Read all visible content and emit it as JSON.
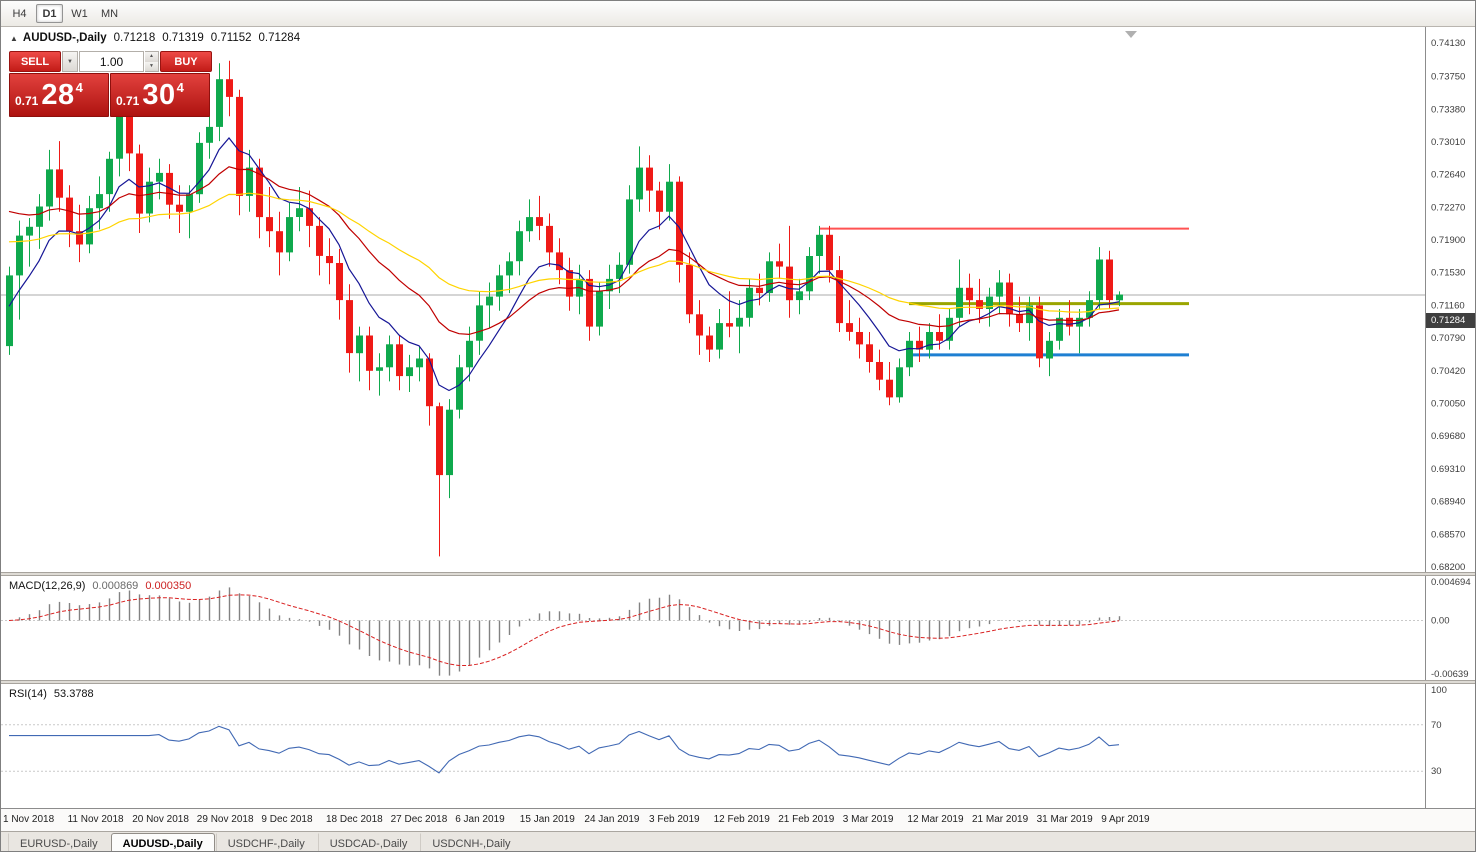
{
  "toolbar": {
    "timeframes": [
      {
        "label": "H4",
        "active": false
      },
      {
        "label": "D1",
        "active": true
      },
      {
        "label": "W1",
        "active": false
      },
      {
        "label": "MN",
        "active": false
      }
    ]
  },
  "chart": {
    "symbol_title": "AUDUSD-,Daily",
    "ohlc": {
      "open": "0.71218",
      "high": "0.71319",
      "low": "0.71152",
      "close": "0.71284"
    },
    "current_price": "0.71284",
    "price_scale": [
      "0.74130",
      "0.73750",
      "0.73380",
      "0.73010",
      "0.72640",
      "0.72270",
      "0.71900",
      "0.71530",
      "0.71160",
      "0.70790",
      "0.70420",
      "0.70050",
      "0.69680",
      "0.69310",
      "0.68940",
      "0.68570",
      "0.68200"
    ],
    "trade_panel": {
      "sell_label": "SELL",
      "buy_label": "BUY",
      "volume": "1.00",
      "bid": {
        "big_figure": "0.71",
        "pips": "28",
        "pipette": "4"
      },
      "ask": {
        "big_figure": "0.71",
        "pips": "30",
        "pipette": "4"
      }
    }
  },
  "macd": {
    "label": "MACD(12,26,9)",
    "main_value": "0.000869",
    "signal_value": "0.000350",
    "scale": {
      "top": "0.004694",
      "zero": "0.00",
      "bottom": "-0.00639"
    }
  },
  "rsi": {
    "label": "RSI(14)",
    "value": "53.3788",
    "scale_labels": [
      "100",
      "70",
      "30"
    ]
  },
  "date_axis": [
    "1 Nov 2018",
    "11 Nov 2018",
    "20 Nov 2018",
    "29 Nov 2018",
    "9 Dec 2018",
    "18 Dec 2018",
    "27 Dec 2018",
    "6 Jan 2019",
    "15 Jan 2019",
    "24 Jan 2019",
    "3 Feb 2019",
    "12 Feb 2019",
    "21 Feb 2019",
    "3 Mar 2019",
    "12 Mar 2019",
    "21 Mar 2019",
    "31 Mar 2019",
    "9 Apr 2019"
  ],
  "tabs": [
    {
      "label": "EURUSD-,Daily",
      "active": false
    },
    {
      "label": "AUDUSD-,Daily",
      "active": true
    },
    {
      "label": "USDCHF-,Daily",
      "active": false
    },
    {
      "label": "USDCAD-,Daily",
      "active": false
    },
    {
      "label": "USDCNH-,Daily",
      "active": false
    }
  ],
  "chart_data": {
    "type": "candlestick",
    "symbol": "AUDUSD",
    "timeframe": "Daily",
    "title": "AUDUSD-,Daily",
    "y_range": [
      0.682,
      0.7413
    ],
    "macd_range": [
      -0.00639,
      0.004694
    ],
    "rsi_range": [
      0,
      100
    ],
    "rsi_levels": [
      70,
      30
    ],
    "colors": {
      "bull": "#0fa94d",
      "bear": "#ef1a17",
      "rsi": "#4169b4",
      "macd_hist": "#828282",
      "macd_signal": "#d92222",
      "current_price_line": "#ababab"
    },
    "moving_averages": [
      {
        "period": 8,
        "color": "#161696",
        "seed": 0.7105
      },
      {
        "period": 20,
        "color": "#c00000",
        "seed": 0.723
      },
      {
        "period": 40,
        "color": "#ffd400",
        "seed": 0.719
      }
    ],
    "hlines": [
      {
        "price": 0.7203,
        "color": "#ff5252",
        "width": 2,
        "from_bar": 81,
        "to_bar": 118
      },
      {
        "price": 0.7118,
        "color": "#9aa500",
        "width": 3,
        "from_bar": 90,
        "to_bar": 118
      },
      {
        "price": 0.706,
        "color": "#1e7fd2",
        "width": 3,
        "from_bar": 90,
        "to_bar": 118
      }
    ],
    "candles": [
      [
        0.707,
        0.716,
        0.706,
        0.715
      ],
      [
        0.715,
        0.7212,
        0.71,
        0.7195
      ],
      [
        0.7195,
        0.7215,
        0.716,
        0.7205
      ],
      [
        0.7205,
        0.7242,
        0.718,
        0.7228
      ],
      [
        0.7228,
        0.7292,
        0.7212,
        0.727
      ],
      [
        0.727,
        0.7302,
        0.7222,
        0.7238
      ],
      [
        0.7238,
        0.7252,
        0.7182,
        0.72
      ],
      [
        0.72,
        0.723,
        0.7165,
        0.7185
      ],
      [
        0.7185,
        0.724,
        0.7175,
        0.7226
      ],
      [
        0.7226,
        0.7262,
        0.7202,
        0.7242
      ],
      [
        0.7242,
        0.729,
        0.7222,
        0.7282
      ],
      [
        0.7282,
        0.7338,
        0.7262,
        0.733
      ],
      [
        0.733,
        0.7336,
        0.7268,
        0.7288
      ],
      [
        0.7288,
        0.7298,
        0.7198,
        0.722
      ],
      [
        0.722,
        0.7272,
        0.721,
        0.7256
      ],
      [
        0.7256,
        0.7282,
        0.7236,
        0.7266
      ],
      [
        0.7266,
        0.7276,
        0.7214,
        0.723
      ],
      [
        0.723,
        0.7252,
        0.7198,
        0.7222
      ],
      [
        0.7222,
        0.7252,
        0.7192,
        0.7242
      ],
      [
        0.7242,
        0.7312,
        0.7232,
        0.73
      ],
      [
        0.73,
        0.7332,
        0.7282,
        0.7318
      ],
      [
        0.7318,
        0.739,
        0.7302,
        0.7372
      ],
      [
        0.7372,
        0.7393,
        0.733,
        0.7352
      ],
      [
        0.7352,
        0.736,
        0.7218,
        0.724
      ],
      [
        0.724,
        0.7292,
        0.7222,
        0.7272
      ],
      [
        0.7272,
        0.7282,
        0.7192,
        0.7216
      ],
      [
        0.7216,
        0.725,
        0.7182,
        0.72
      ],
      [
        0.72,
        0.7222,
        0.715,
        0.7176
      ],
      [
        0.7176,
        0.7232,
        0.7166,
        0.7216
      ],
      [
        0.7216,
        0.725,
        0.72,
        0.7226
      ],
      [
        0.7226,
        0.7246,
        0.7182,
        0.7206
      ],
      [
        0.7206,
        0.7216,
        0.715,
        0.7172
      ],
      [
        0.7172,
        0.7192,
        0.714,
        0.7164
      ],
      [
        0.7164,
        0.718,
        0.71,
        0.7122
      ],
      [
        0.7122,
        0.714,
        0.704,
        0.7062
      ],
      [
        0.7062,
        0.7092,
        0.703,
        0.7082
      ],
      [
        0.7082,
        0.7092,
        0.702,
        0.7042
      ],
      [
        0.7042,
        0.7062,
        0.7014,
        0.7046
      ],
      [
        0.7046,
        0.7082,
        0.703,
        0.7072
      ],
      [
        0.7072,
        0.7082,
        0.702,
        0.7036
      ],
      [
        0.7036,
        0.706,
        0.7018,
        0.7046
      ],
      [
        0.7046,
        0.707,
        0.703,
        0.7056
      ],
      [
        0.7056,
        0.7062,
        0.698,
        0.7002
      ],
      [
        0.7002,
        0.7006,
        0.6832,
        0.6924
      ],
      [
        0.6924,
        0.701,
        0.6898,
        0.6998
      ],
      [
        0.6998,
        0.706,
        0.6988,
        0.7046
      ],
      [
        0.7046,
        0.7092,
        0.703,
        0.7076
      ],
      [
        0.7076,
        0.7132,
        0.706,
        0.7116
      ],
      [
        0.7116,
        0.7142,
        0.709,
        0.7126
      ],
      [
        0.7126,
        0.7162,
        0.711,
        0.715
      ],
      [
        0.715,
        0.7176,
        0.713,
        0.7166
      ],
      [
        0.7166,
        0.7212,
        0.715,
        0.72
      ],
      [
        0.72,
        0.7236,
        0.7188,
        0.7216
      ],
      [
        0.7216,
        0.724,
        0.719,
        0.7206
      ],
      [
        0.7206,
        0.722,
        0.716,
        0.7176
      ],
      [
        0.7176,
        0.7192,
        0.714,
        0.7156
      ],
      [
        0.7156,
        0.717,
        0.711,
        0.7126
      ],
      [
        0.7126,
        0.7162,
        0.7106,
        0.7146
      ],
      [
        0.7146,
        0.7156,
        0.7076,
        0.7092
      ],
      [
        0.7092,
        0.7142,
        0.7082,
        0.7132
      ],
      [
        0.7132,
        0.7162,
        0.7112,
        0.7146
      ],
      [
        0.7146,
        0.7176,
        0.713,
        0.7162
      ],
      [
        0.7162,
        0.7252,
        0.7152,
        0.7236
      ],
      [
        0.7236,
        0.7296,
        0.7222,
        0.7272
      ],
      [
        0.7272,
        0.7286,
        0.7222,
        0.7246
      ],
      [
        0.7246,
        0.7256,
        0.7202,
        0.7222
      ],
      [
        0.7222,
        0.7276,
        0.7212,
        0.7256
      ],
      [
        0.7256,
        0.7262,
        0.7142,
        0.7162
      ],
      [
        0.7162,
        0.7176,
        0.7096,
        0.7106
      ],
      [
        0.7106,
        0.7122,
        0.706,
        0.7082
      ],
      [
        0.7082,
        0.7092,
        0.7052,
        0.7066
      ],
      [
        0.7066,
        0.7112,
        0.7056,
        0.7096
      ],
      [
        0.7096,
        0.7132,
        0.708,
        0.7092
      ],
      [
        0.7092,
        0.7122,
        0.7062,
        0.7102
      ],
      [
        0.7102,
        0.7146,
        0.7092,
        0.7136
      ],
      [
        0.7136,
        0.7152,
        0.7116,
        0.713
      ],
      [
        0.713,
        0.7176,
        0.712,
        0.7166
      ],
      [
        0.7166,
        0.7186,
        0.7146,
        0.716
      ],
      [
        0.716,
        0.7206,
        0.7102,
        0.7122
      ],
      [
        0.7122,
        0.7146,
        0.7106,
        0.7132
      ],
      [
        0.7132,
        0.7182,
        0.7122,
        0.7172
      ],
      [
        0.7172,
        0.7206,
        0.7152,
        0.7196
      ],
      [
        0.7196,
        0.7206,
        0.7142,
        0.7156
      ],
      [
        0.7156,
        0.7172,
        0.7086,
        0.7096
      ],
      [
        0.7096,
        0.7122,
        0.7076,
        0.7086
      ],
      [
        0.7086,
        0.7102,
        0.7056,
        0.7072
      ],
      [
        0.7072,
        0.7086,
        0.704,
        0.7052
      ],
      [
        0.7052,
        0.7066,
        0.702,
        0.7032
      ],
      [
        0.7032,
        0.7052,
        0.7003,
        0.7012
      ],
      [
        0.7012,
        0.7056,
        0.7006,
        0.7046
      ],
      [
        0.7046,
        0.7086,
        0.7036,
        0.7076
      ],
      [
        0.7076,
        0.7092,
        0.7052,
        0.7066
      ],
      [
        0.7066,
        0.7096,
        0.7056,
        0.7086
      ],
      [
        0.7086,
        0.7106,
        0.7066,
        0.7076
      ],
      [
        0.7076,
        0.7112,
        0.7066,
        0.7102
      ],
      [
        0.7102,
        0.7168,
        0.7092,
        0.7136
      ],
      [
        0.7136,
        0.7152,
        0.7106,
        0.7122
      ],
      [
        0.7122,
        0.7146,
        0.7096,
        0.7112
      ],
      [
        0.7112,
        0.7136,
        0.7092,
        0.7126
      ],
      [
        0.7126,
        0.7156,
        0.7106,
        0.7142
      ],
      [
        0.7142,
        0.7152,
        0.7092,
        0.7106
      ],
      [
        0.7106,
        0.7126,
        0.7086,
        0.7096
      ],
      [
        0.7096,
        0.7126,
        0.7076,
        0.7116
      ],
      [
        0.7116,
        0.7126,
        0.7046,
        0.7056
      ],
      [
        0.7056,
        0.7086,
        0.7036,
        0.7076
      ],
      [
        0.7076,
        0.7112,
        0.7066,
        0.7102
      ],
      [
        0.7102,
        0.7122,
        0.7082,
        0.7092
      ],
      [
        0.7092,
        0.7112,
        0.7062,
        0.7102
      ],
      [
        0.7102,
        0.7132,
        0.7092,
        0.7122
      ],
      [
        0.7122,
        0.7182,
        0.7112,
        0.7168
      ],
      [
        0.7168,
        0.7178,
        0.7112,
        0.7122
      ],
      [
        0.71218,
        0.71319,
        0.71152,
        0.71284
      ]
    ]
  }
}
